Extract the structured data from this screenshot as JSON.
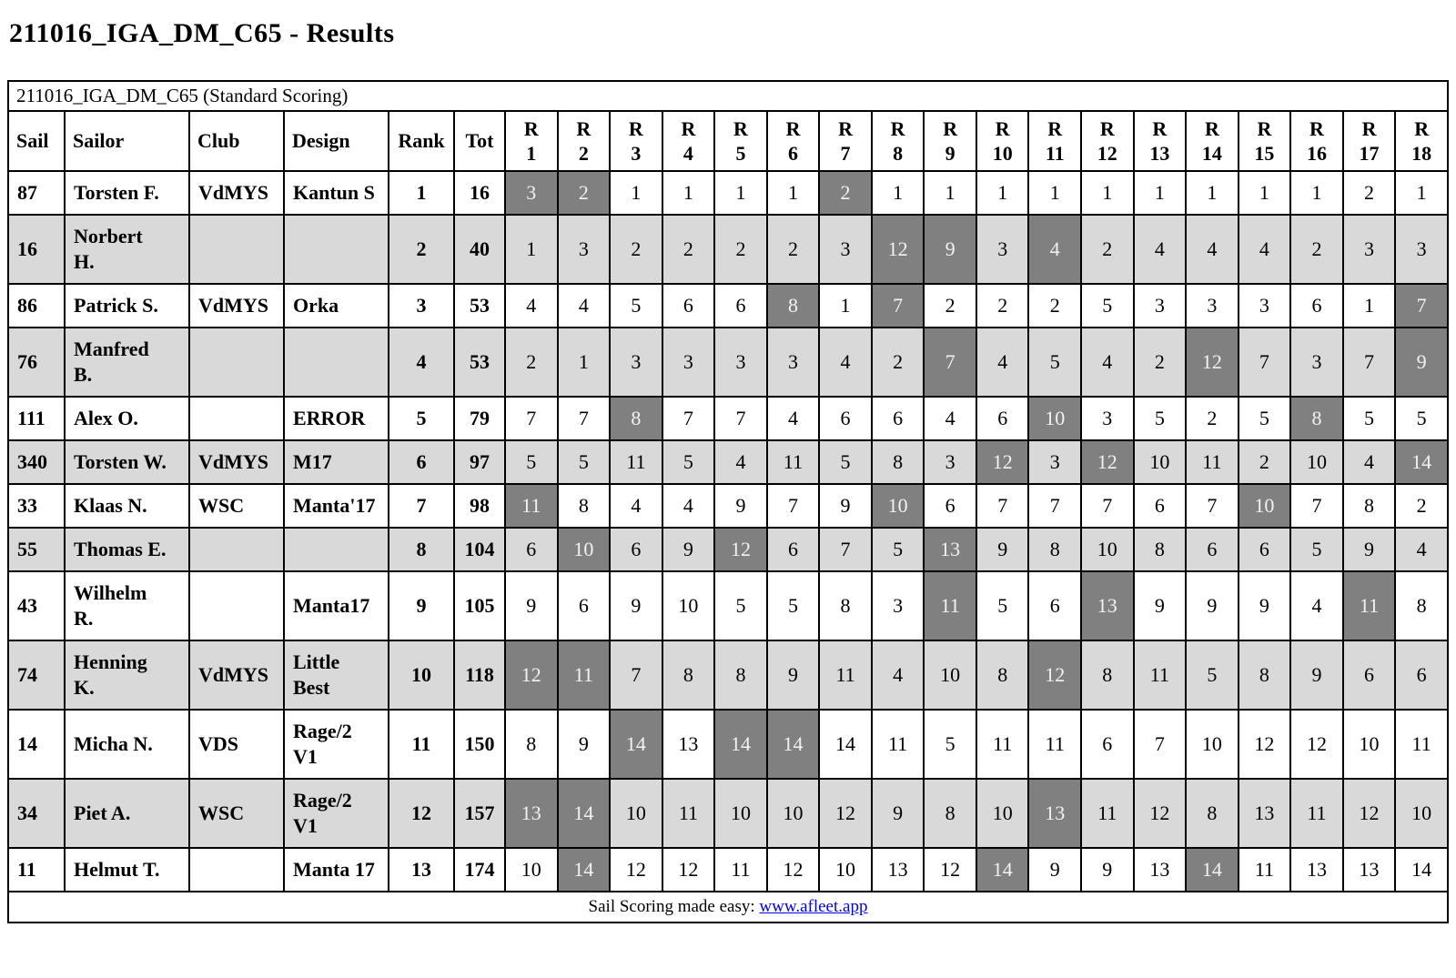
{
  "page": {
    "title": "211016_IGA_DM_C65 - Results"
  },
  "table": {
    "caption": "211016_IGA_DM_C65 (Standard Scoring)",
    "info_columns": [
      "Sail",
      "Sailor",
      "Club",
      "Design",
      "Rank",
      "Tot"
    ],
    "race_prefix": "R",
    "race_numbers": [
      "1",
      "2",
      "3",
      "4",
      "5",
      "6",
      "7",
      "8",
      "9",
      "10",
      "11",
      "12",
      "13",
      "14",
      "15",
      "16",
      "17",
      "18"
    ],
    "rows": [
      {
        "sail": "87",
        "sailor": "Torsten F.",
        "club": "VdMYS",
        "design": "Kantun S",
        "rank": "1",
        "tot": "16",
        "scores": [
          "3",
          "2",
          "1",
          "1",
          "1",
          "1",
          "2",
          "1",
          "1",
          "1",
          "1",
          "1",
          "1",
          "1",
          "1",
          "1",
          "2",
          "1"
        ],
        "discarded_races": [
          1,
          2,
          7
        ]
      },
      {
        "sail": "16",
        "sailor": "Norbert\nH.",
        "club": "",
        "design": "",
        "rank": "2",
        "tot": "40",
        "scores": [
          "1",
          "3",
          "2",
          "2",
          "2",
          "2",
          "3",
          "12",
          "9",
          "3",
          "4",
          "2",
          "4",
          "4",
          "4",
          "2",
          "3",
          "3"
        ],
        "discarded_races": [
          8,
          9,
          11
        ]
      },
      {
        "sail": "86",
        "sailor": "Patrick S.",
        "club": "VdMYS",
        "design": "Orka",
        "rank": "3",
        "tot": "53",
        "scores": [
          "4",
          "4",
          "5",
          "6",
          "6",
          "8",
          "1",
          "7",
          "2",
          "2",
          "2",
          "5",
          "3",
          "3",
          "3",
          "6",
          "1",
          "7"
        ],
        "discarded_races": [
          6,
          8,
          18
        ]
      },
      {
        "sail": "76",
        "sailor": "Manfred\nB.",
        "club": "",
        "design": "",
        "rank": "4",
        "tot": "53",
        "scores": [
          "2",
          "1",
          "3",
          "3",
          "3",
          "3",
          "4",
          "2",
          "7",
          "4",
          "5",
          "4",
          "2",
          "12",
          "7",
          "3",
          "7",
          "9"
        ],
        "discarded_races": [
          9,
          14,
          18
        ]
      },
      {
        "sail": "111",
        "sailor": "Alex O.",
        "club": "",
        "design": "ERROR",
        "rank": "5",
        "tot": "79",
        "scores": [
          "7",
          "7",
          "8",
          "7",
          "7",
          "4",
          "6",
          "6",
          "4",
          "6",
          "10",
          "3",
          "5",
          "2",
          "5",
          "8",
          "5",
          "5"
        ],
        "discarded_races": [
          3,
          11,
          16
        ]
      },
      {
        "sail": "340",
        "sailor": "Torsten W.",
        "club": "VdMYS",
        "design": "M17",
        "rank": "6",
        "tot": "97",
        "scores": [
          "5",
          "5",
          "11",
          "5",
          "4",
          "11",
          "5",
          "8",
          "3",
          "12",
          "3",
          "12",
          "10",
          "11",
          "2",
          "10",
          "4",
          "14"
        ],
        "discarded_races": [
          10,
          12,
          18
        ]
      },
      {
        "sail": "33",
        "sailor": "Klaas N.",
        "club": "WSC",
        "design": "Manta'17",
        "rank": "7",
        "tot": "98",
        "scores": [
          "11",
          "8",
          "4",
          "4",
          "9",
          "7",
          "9",
          "10",
          "6",
          "7",
          "7",
          "7",
          "6",
          "7",
          "10",
          "7",
          "8",
          "2"
        ],
        "discarded_races": [
          1,
          8,
          15
        ]
      },
      {
        "sail": "55",
        "sailor": "Thomas E.",
        "club": "",
        "design": "",
        "rank": "8",
        "tot": "104",
        "scores": [
          "6",
          "10",
          "6",
          "9",
          "12",
          "6",
          "7",
          "5",
          "13",
          "9",
          "8",
          "10",
          "8",
          "6",
          "6",
          "5",
          "9",
          "4"
        ],
        "discarded_races": [
          2,
          5,
          9
        ]
      },
      {
        "sail": "43",
        "sailor": "Wilhelm\nR.",
        "club": "",
        "design": "Manta17",
        "rank": "9",
        "tot": "105",
        "scores": [
          "9",
          "6",
          "9",
          "10",
          "5",
          "5",
          "8",
          "3",
          "11",
          "5",
          "6",
          "13",
          "9",
          "9",
          "9",
          "4",
          "11",
          "8"
        ],
        "discarded_races": [
          9,
          12,
          17
        ]
      },
      {
        "sail": "74",
        "sailor": "Henning\nK.",
        "club": "VdMYS",
        "design": "Little\nBest",
        "rank": "10",
        "tot": "118",
        "scores": [
          "12",
          "11",
          "7",
          "8",
          "8",
          "9",
          "11",
          "4",
          "10",
          "8",
          "12",
          "8",
          "11",
          "5",
          "8",
          "9",
          "6",
          "6"
        ],
        "discarded_races": [
          1,
          2,
          11
        ]
      },
      {
        "sail": "14",
        "sailor": "Micha N.",
        "club": "VDS",
        "design": "Rage/2\nV1",
        "rank": "11",
        "tot": "150",
        "scores": [
          "8",
          "9",
          "14",
          "13",
          "14",
          "14",
          "14",
          "11",
          "5",
          "11",
          "11",
          "6",
          "7",
          "10",
          "12",
          "12",
          "10",
          "11"
        ],
        "discarded_races": [
          3,
          5,
          6
        ]
      },
      {
        "sail": "34",
        "sailor": "Piet A.",
        "club": "WSC",
        "design": "Rage/2\nV1",
        "rank": "12",
        "tot": "157",
        "scores": [
          "13",
          "14",
          "10",
          "11",
          "10",
          "10",
          "12",
          "9",
          "8",
          "10",
          "13",
          "11",
          "12",
          "8",
          "13",
          "11",
          "12",
          "10"
        ],
        "discarded_races": [
          1,
          2,
          11
        ]
      },
      {
        "sail": "11",
        "sailor": "Helmut T.",
        "club": "",
        "design": "Manta 17",
        "rank": "13",
        "tot": "174",
        "scores": [
          "10",
          "14",
          "12",
          "12",
          "11",
          "12",
          "10",
          "13",
          "12",
          "14",
          "9",
          "9",
          "13",
          "14",
          "11",
          "13",
          "13",
          "14"
        ],
        "discarded_races": [
          2,
          10,
          14
        ]
      }
    ],
    "footer": {
      "text": "Sail Scoring made easy: ",
      "link_label": "www.afleet.app"
    }
  },
  "colors": {
    "row_stripe": "#d9d9d9",
    "discard_cell_bg": "#808080",
    "discard_cell_text": "#f2f2f2",
    "border": "#000000",
    "link": "#0000ee"
  }
}
